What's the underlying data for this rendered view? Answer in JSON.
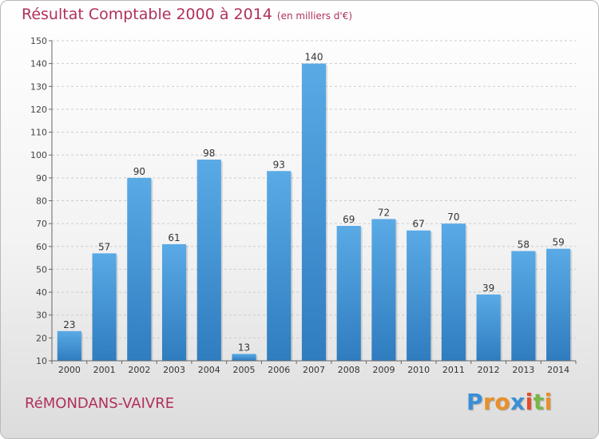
{
  "chart_data": {
    "type": "bar",
    "title": "Résultat Comptable 2000 à 2014",
    "subtitle": "(en milliers d'€)",
    "categories": [
      "2000",
      "2001",
      "2002",
      "2003",
      "2004",
      "2005",
      "2006",
      "2007",
      "2008",
      "2009",
      "2010",
      "2011",
      "2012",
      "2013",
      "2014"
    ],
    "values": [
      23,
      57,
      90,
      61,
      98,
      13,
      93,
      140,
      69,
      72,
      67,
      70,
      39,
      58,
      59
    ],
    "ylim": [
      10,
      150
    ],
    "yticks": [
      10,
      20,
      30,
      40,
      50,
      60,
      70,
      80,
      90,
      100,
      110,
      120,
      130,
      140,
      150
    ],
    "grid": true,
    "data_labels": true,
    "colors": {
      "bar_top": "#5aaae6",
      "bar_bottom": "#2f7cbf",
      "title": "#b0305a",
      "grid": "#cccccc"
    }
  },
  "footer": {
    "commune": "RéMONDANS-VAIVRE",
    "brand_letters": [
      {
        "ch": "P",
        "color": "#3a8fd6"
      },
      {
        "ch": "r",
        "color": "#e8902a"
      },
      {
        "ch": "o",
        "color": "#e8902a"
      },
      {
        "ch": "x",
        "color": "#3a8fd6"
      },
      {
        "ch": "i",
        "color": "#e64b2a"
      },
      {
        "ch": "t",
        "color": "#7ab648"
      },
      {
        "ch": "i",
        "color": "#e8902a"
      }
    ]
  }
}
